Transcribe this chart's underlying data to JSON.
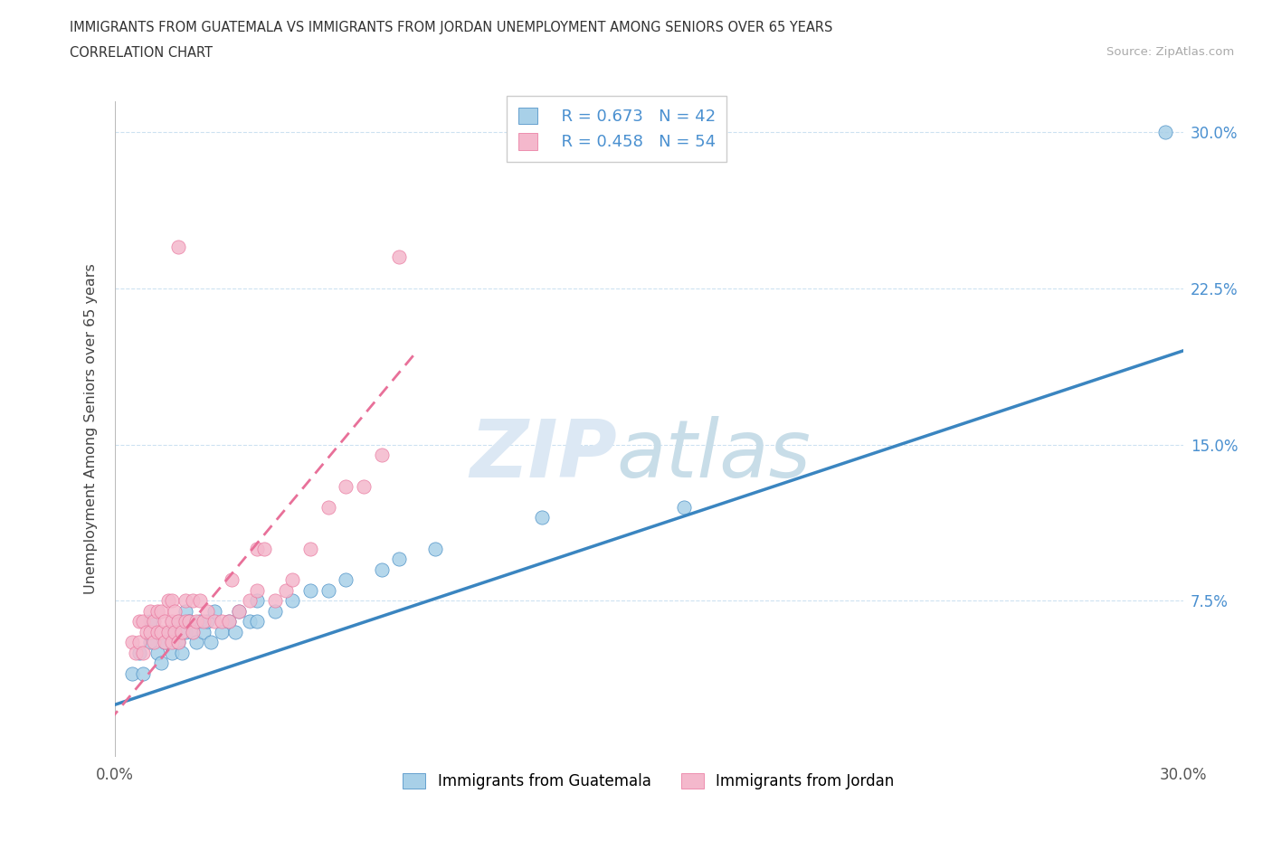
{
  "title_line1": "IMMIGRANTS FROM GUATEMALA VS IMMIGRANTS FROM JORDAN UNEMPLOYMENT AMONG SENIORS OVER 65 YEARS",
  "title_line2": "CORRELATION CHART",
  "source_text": "Source: ZipAtlas.com",
  "ylabel": "Unemployment Among Seniors over 65 years",
  "xlim": [
    0.0,
    0.3
  ],
  "ylim": [
    0.0,
    0.315
  ],
  "yticks": [
    0.0,
    0.075,
    0.15,
    0.225,
    0.3
  ],
  "ytick_labels_left": [
    "",
    "",
    "",
    "",
    ""
  ],
  "ytick_labels_right": [
    "",
    "7.5%",
    "15.0%",
    "22.5%",
    "30.0%"
  ],
  "xticks": [
    0.0,
    0.075,
    0.15,
    0.225,
    0.3
  ],
  "xtick_labels": [
    "0.0%",
    "",
    "",
    "",
    "30.0%"
  ],
  "legend_r1": "R = 0.673",
  "legend_n1": "N = 42",
  "legend_r2": "R = 0.458",
  "legend_n2": "N = 54",
  "color_guatemala": "#a8d0e8",
  "color_jordan": "#f4b8cc",
  "color_line_guatemala": "#3a85c0",
  "color_line_jordan": "#e87099",
  "color_tick": "#4a90d0",
  "color_grid": "#c8dff0",
  "watermark_zip_color": "#dce8f4",
  "watermark_atlas_color": "#c8dde8",
  "guatemala_x": [
    0.005,
    0.007,
    0.008,
    0.01,
    0.01,
    0.012,
    0.013,
    0.014,
    0.015,
    0.016,
    0.017,
    0.018,
    0.018,
    0.019,
    0.02,
    0.02,
    0.021,
    0.022,
    0.023,
    0.024,
    0.025,
    0.026,
    0.027,
    0.028,
    0.03,
    0.032,
    0.034,
    0.035,
    0.038,
    0.04,
    0.04,
    0.045,
    0.05,
    0.055,
    0.06,
    0.065,
    0.075,
    0.08,
    0.09,
    0.12,
    0.16,
    0.295
  ],
  "guatemala_y": [
    0.04,
    0.05,
    0.04,
    0.055,
    0.065,
    0.05,
    0.045,
    0.055,
    0.06,
    0.05,
    0.06,
    0.055,
    0.065,
    0.05,
    0.06,
    0.07,
    0.065,
    0.06,
    0.055,
    0.065,
    0.06,
    0.065,
    0.055,
    0.07,
    0.06,
    0.065,
    0.06,
    0.07,
    0.065,
    0.065,
    0.075,
    0.07,
    0.075,
    0.08,
    0.08,
    0.085,
    0.09,
    0.095,
    0.1,
    0.115,
    0.12,
    0.3
  ],
  "jordan_x": [
    0.005,
    0.006,
    0.007,
    0.007,
    0.008,
    0.008,
    0.009,
    0.01,
    0.01,
    0.011,
    0.011,
    0.012,
    0.012,
    0.013,
    0.013,
    0.014,
    0.014,
    0.015,
    0.015,
    0.016,
    0.016,
    0.016,
    0.017,
    0.017,
    0.018,
    0.018,
    0.019,
    0.02,
    0.02,
    0.021,
    0.022,
    0.022,
    0.023,
    0.024,
    0.025,
    0.026,
    0.028,
    0.03,
    0.032,
    0.033,
    0.035,
    0.038,
    0.04,
    0.04,
    0.042,
    0.045,
    0.048,
    0.05,
    0.055,
    0.06,
    0.065,
    0.07,
    0.075,
    0.08
  ],
  "jordan_y": [
    0.055,
    0.05,
    0.055,
    0.065,
    0.05,
    0.065,
    0.06,
    0.06,
    0.07,
    0.055,
    0.065,
    0.06,
    0.07,
    0.06,
    0.07,
    0.055,
    0.065,
    0.06,
    0.075,
    0.055,
    0.065,
    0.075,
    0.06,
    0.07,
    0.055,
    0.065,
    0.06,
    0.065,
    0.075,
    0.065,
    0.06,
    0.075,
    0.065,
    0.075,
    0.065,
    0.07,
    0.065,
    0.065,
    0.065,
    0.085,
    0.07,
    0.075,
    0.08,
    0.1,
    0.1,
    0.075,
    0.08,
    0.085,
    0.1,
    0.12,
    0.13,
    0.13,
    0.145,
    0.24
  ],
  "jordan_outlier_x": [
    0.018
  ],
  "jordan_outlier_y": [
    0.245
  ],
  "guatemala_line_x": [
    0.0,
    0.3
  ],
  "guatemala_line_y": [
    0.025,
    0.195
  ],
  "jordan_line_x": [
    -0.005,
    0.085
  ],
  "jordan_line_y": [
    0.01,
    0.195
  ]
}
